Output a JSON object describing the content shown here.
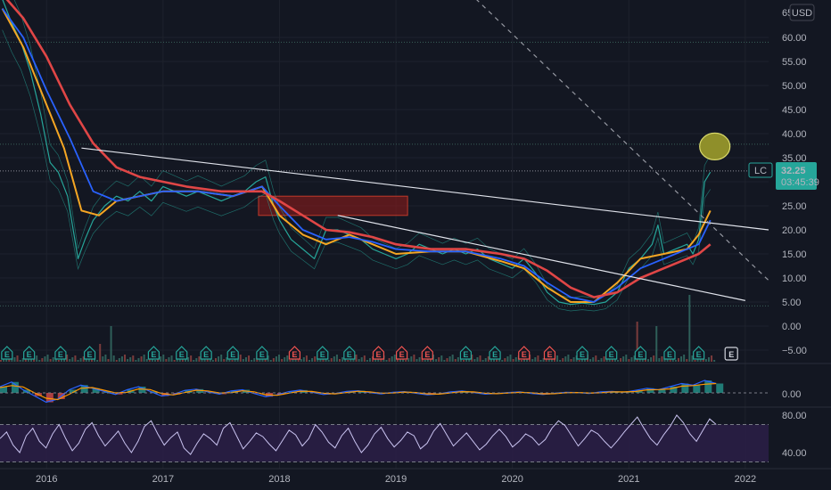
{
  "header": {
    "currency_label": "USD",
    "top_tick_partial": "65"
  },
  "price_axis": {
    "ticks": [
      "60.00",
      "55.00",
      "50.00",
      "45.00",
      "40.00",
      "35.00",
      "30.00",
      "25.00",
      "20.00",
      "15.00",
      "10.00",
      "5.00",
      "0.00",
      "−5.00"
    ]
  },
  "time_axis": {
    "ticks": [
      "2016",
      "2017",
      "2018",
      "2019",
      "2020",
      "2021",
      "2022"
    ]
  },
  "macd_axis": {
    "ticks": [
      "0.00"
    ]
  },
  "rsi_axis": {
    "ticks": [
      "80.00",
      "40.00"
    ]
  },
  "last_price": {
    "symbol": "LC",
    "price": "32.25",
    "countdown": "03:45:39",
    "color": "#26a69a"
  },
  "earnings_badge_label": "E",
  "colors": {
    "background": "#131722",
    "price_line": "#26a69a",
    "ma_short": "#f5a623",
    "ma_mid": "#2962ff",
    "ma_long": "#e04646",
    "rsi_line": "#c9c3f0",
    "rsi_band": "#2a1e45",
    "earnings_good": "#26a69a",
    "earnings_bad": "#ef5350",
    "resistance_box": "#8b1a1a",
    "highlight_circle": "#8f8f2a"
  },
  "chart_data": {
    "type": "line",
    "title": "",
    "xlabel": "",
    "ylabel": "",
    "ylim": [
      -7,
      66
    ],
    "xlim": [
      2015.6,
      2022.2
    ],
    "grid": true,
    "series": [
      {
        "role": "price",
        "x": [
          2015.62,
          2015.7,
          2015.78,
          2015.86,
          2015.95,
          2016.03,
          2016.1,
          2016.18,
          2016.27,
          2016.33,
          2016.4,
          2016.5,
          2016.6,
          2016.7,
          2016.8,
          2016.9,
          2017.0,
          2017.1,
          2017.2,
          2017.3,
          2017.4,
          2017.5,
          2017.6,
          2017.7,
          2017.8,
          2017.88,
          2017.95,
          2018.0,
          2018.1,
          2018.2,
          2018.3,
          2018.4,
          2018.5,
          2018.6,
          2018.7,
          2018.8,
          2018.9,
          2019.0,
          2019.1,
          2019.2,
          2019.3,
          2019.4,
          2019.5,
          2019.6,
          2019.7,
          2019.8,
          2019.9,
          2020.0,
          2020.1,
          2020.2,
          2020.3,
          2020.4,
          2020.5,
          2020.6,
          2020.7,
          2020.8,
          2020.9,
          2021.0,
          2021.1,
          2021.2,
          2021.25,
          2021.3,
          2021.4,
          2021.5,
          2021.55,
          2021.6,
          2021.65,
          2021.7
        ],
        "values": [
          68,
          63,
          59,
          53,
          44,
          34,
          32,
          27,
          14,
          18,
          22,
          25,
          27,
          26,
          28,
          26,
          29,
          28,
          27,
          28,
          27,
          26,
          27,
          28,
          30,
          31,
          25,
          22,
          18,
          16,
          14,
          20,
          20,
          19,
          18,
          16,
          15,
          14,
          15,
          17,
          16,
          15,
          16,
          15,
          16,
          14,
          13,
          12,
          14,
          11,
          7,
          5,
          4.5,
          4.8,
          4.5,
          5,
          7,
          12,
          14,
          17,
          21,
          15,
          16,
          17,
          15,
          18,
          30,
          32
        ]
      },
      {
        "role": "ma_short",
        "x": [
          2015.62,
          2015.8,
          2016.0,
          2016.15,
          2016.3,
          2016.45,
          2016.6,
          2016.8,
          2017.0,
          2017.3,
          2017.6,
          2017.85,
          2018.0,
          2018.2,
          2018.4,
          2018.6,
          2018.8,
          2019.0,
          2019.3,
          2019.6,
          2019.9,
          2020.1,
          2020.3,
          2020.5,
          2020.7,
          2020.9,
          2021.1,
          2021.3,
          2021.5,
          2021.6,
          2021.7
        ],
        "values": [
          66,
          58,
          46,
          37,
          24,
          23,
          26,
          27,
          28,
          28,
          27,
          29,
          23,
          19,
          17,
          19,
          17,
          15,
          15.5,
          15.5,
          13.5,
          12,
          8,
          5,
          5,
          9,
          14,
          15,
          16,
          19,
          24
        ]
      },
      {
        "role": "ma_mid",
        "x": [
          2015.62,
          2015.8,
          2016.0,
          2016.2,
          2016.4,
          2016.6,
          2016.8,
          2017.0,
          2017.3,
          2017.6,
          2017.85,
          2018.0,
          2018.2,
          2018.4,
          2018.6,
          2018.8,
          2019.0,
          2019.3,
          2019.6,
          2019.9,
          2020.1,
          2020.3,
          2020.5,
          2020.7,
          2020.9,
          2021.1,
          2021.3,
          2021.5,
          2021.6,
          2021.7
        ],
        "values": [
          66,
          60,
          49,
          39,
          28,
          26,
          27,
          28,
          28,
          27,
          29,
          25,
          20,
          18,
          18.5,
          17.5,
          16,
          15.5,
          15.5,
          14,
          12.5,
          9,
          6,
          5,
          8,
          12,
          14,
          16,
          17,
          22
        ]
      },
      {
        "role": "ma_long",
        "x": [
          2015.62,
          2015.8,
          2016.0,
          2016.2,
          2016.4,
          2016.6,
          2016.8,
          2017.0,
          2017.2,
          2017.5,
          2017.85,
          2018.0,
          2018.2,
          2018.4,
          2018.6,
          2018.8,
          2019.0,
          2019.3,
          2019.6,
          2019.9,
          2020.1,
          2020.3,
          2020.5,
          2020.7,
          2020.9,
          2021.1,
          2021.3,
          2021.5,
          2021.6,
          2021.7
        ],
        "values": [
          69,
          64,
          56,
          46,
          38,
          33,
          31,
          30,
          29,
          28,
          28,
          26,
          23,
          20,
          19.5,
          18.5,
          17,
          16,
          16,
          15,
          14,
          11.5,
          8,
          6,
          7,
          10,
          12,
          14,
          15,
          17
        ]
      }
    ],
    "trendlines": [
      {
        "x": [
          2016.3,
          2022.2
        ],
        "values": [
          37,
          20
        ]
      },
      {
        "x": [
          2018.5,
          2022.0
        ],
        "values": [
          23,
          5.3
        ]
      },
      {
        "x": [
          2019.3,
          2022.2
        ],
        "values": [
          77,
          9.5
        ],
        "dashed": true
      }
    ],
    "horizontal_levels": [
      59,
      37.8,
      32.25,
      4.2
    ],
    "zones": [
      {
        "x": [
          2017.82,
          2019.1
        ],
        "values": [
          23,
          27
        ],
        "label": ""
      }
    ],
    "markers": [
      {
        "x": 2021.7,
        "value": 39,
        "shape": "circle"
      }
    ],
    "earnings": [
      {
        "x": 2015.66,
        "type": "good"
      },
      {
        "x": 2015.85,
        "type": "good"
      },
      {
        "x": 2016.12,
        "type": "good"
      },
      {
        "x": 2016.37,
        "type": "good"
      },
      {
        "x": 2016.92,
        "type": "good"
      },
      {
        "x": 2017.16,
        "type": "good"
      },
      {
        "x": 2017.37,
        "type": "good"
      },
      {
        "x": 2017.6,
        "type": "good"
      },
      {
        "x": 2017.85,
        "type": "good"
      },
      {
        "x": 2018.13,
        "type": "bad"
      },
      {
        "x": 2018.37,
        "type": "good"
      },
      {
        "x": 2018.6,
        "type": "good"
      },
      {
        "x": 2018.85,
        "type": "bad"
      },
      {
        "x": 2019.05,
        "type": "bad"
      },
      {
        "x": 2019.27,
        "type": "bad"
      },
      {
        "x": 2019.6,
        "type": "good"
      },
      {
        "x": 2019.85,
        "type": "good"
      },
      {
        "x": 2020.1,
        "type": "bad"
      },
      {
        "x": 2020.32,
        "type": "bad"
      },
      {
        "x": 2020.6,
        "type": "good"
      },
      {
        "x": 2020.85,
        "type": "good"
      },
      {
        "x": 2021.1,
        "type": "good"
      },
      {
        "x": 2021.35,
        "type": "good"
      },
      {
        "x": 2021.6,
        "type": "good"
      },
      {
        "x": 2021.88,
        "type": "upcoming"
      }
    ],
    "rsi": {
      "ylim": [
        35,
        90
      ],
      "levels": [
        70,
        30
      ],
      "values": [
        55,
        62,
        48,
        40,
        58,
        66,
        52,
        45,
        60,
        70,
        55,
        42,
        50,
        65,
        72,
        58,
        47,
        55,
        63,
        50,
        40,
        52,
        68,
        74,
        60,
        48,
        56,
        62,
        45,
        38,
        50,
        60,
        55,
        48,
        66,
        72,
        58,
        44,
        52,
        61,
        57,
        49,
        42,
        53,
        64,
        59,
        47,
        55,
        70,
        62,
        51,
        45,
        58,
        66,
        52,
        40,
        48,
        60,
        67,
        55,
        46,
        53,
        62,
        58,
        44,
        50,
        63,
        71,
        59,
        47,
        54,
        61,
        52,
        43,
        49,
        58,
        65,
        57,
        46,
        52,
        60,
        56,
        48,
        54,
        66,
        74,
        69,
        58,
        47,
        55,
        64,
        60,
        52,
        45,
        53,
        62,
        70,
        78,
        66,
        55,
        48,
        59,
        68,
        80,
        72,
        60,
        52,
        64,
        76,
        70
      ]
    },
    "macd": {
      "values": [
        2,
        3.5,
        1,
        -1,
        -3,
        -2,
        1,
        2.5,
        1.5,
        0.5,
        -0.5,
        1,
        2,
        0.5,
        -1,
        -0.5,
        0.8,
        1.2,
        0.3,
        -0.4,
        0.6,
        1,
        -0.2,
        -1.2,
        -0.6,
        0.4,
        0.9,
        0.2,
        -0.5,
        -0.2,
        0.5,
        0.7,
        0.1,
        -0.3,
        0.2,
        0.4,
        -0.1,
        -0.6,
        -0.3,
        0.3,
        0.6,
        0.1,
        -0.4,
        -0.2,
        0.1,
        0.3,
        -0.2,
        -0.5,
        -0.1,
        0.2,
        0.1,
        -0.2,
        0.3,
        0.5,
        0.2,
        0.8,
        1.5,
        1,
        2,
        3,
        2.5,
        4,
        3
      ]
    }
  }
}
